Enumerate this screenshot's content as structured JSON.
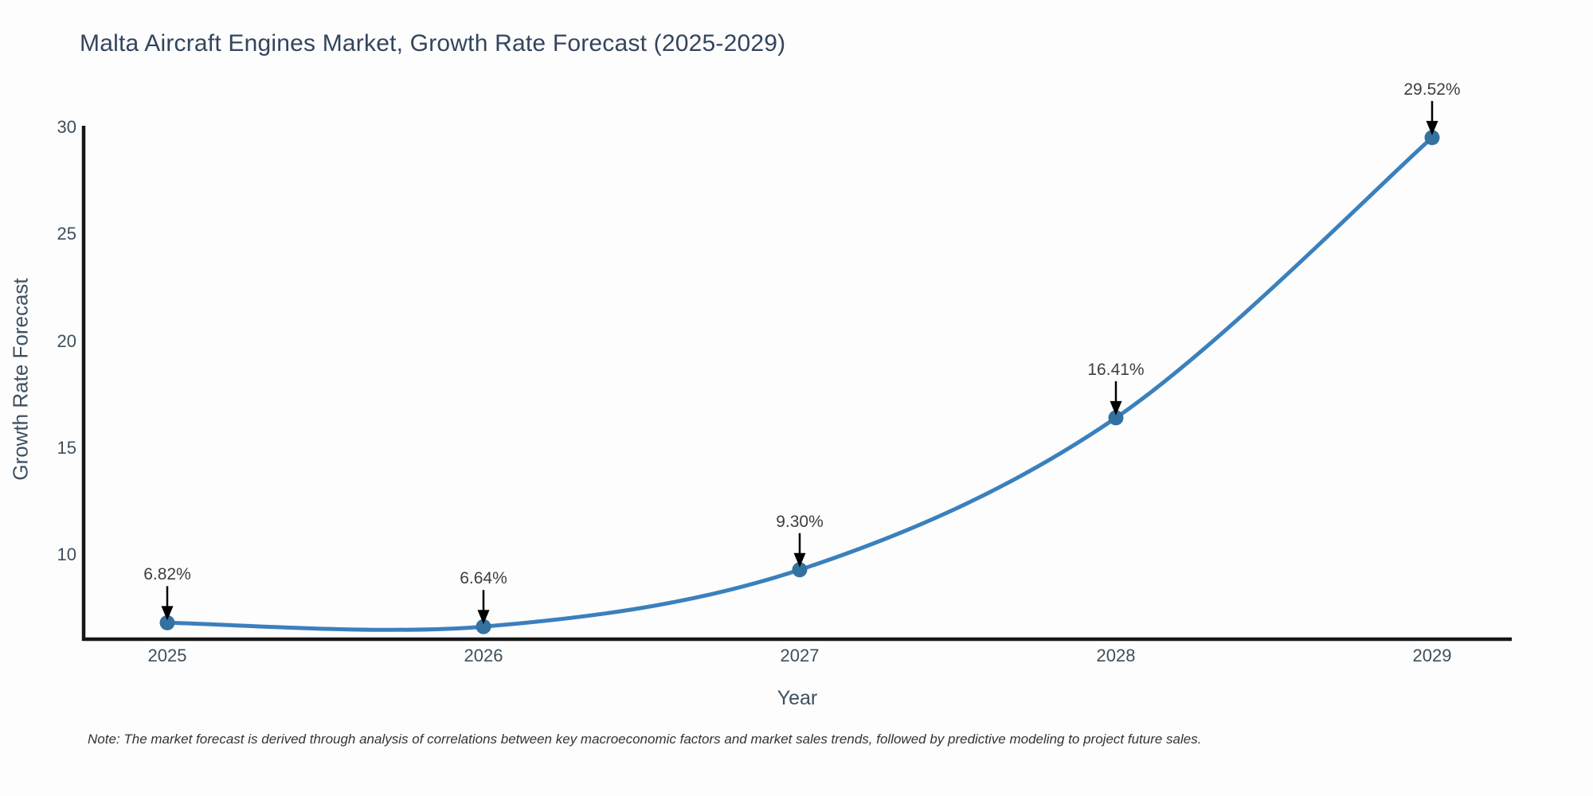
{
  "chart_data": {
    "type": "line",
    "title": "Malta Aircraft Engines Market, Growth Rate Forecast (2025-2029)",
    "xlabel": "Year",
    "ylabel": "Growth Rate Forecast",
    "categories": [
      "2025",
      "2026",
      "2027",
      "2028",
      "2029"
    ],
    "series": [
      {
        "name": "Growth Rate Forecast",
        "values": [
          6.82,
          6.64,
          9.3,
          16.41,
          29.52
        ]
      }
    ],
    "point_labels": [
      "6.82%",
      "6.64%",
      "9.30%",
      "16.41%",
      "29.52%"
    ],
    "yticks": [
      10,
      15,
      20,
      25,
      30
    ],
    "ylim": [
      6.15,
      30
    ],
    "grid": false,
    "legend": false,
    "smooth_spline": true,
    "line_color": "#3a80bd",
    "marker_color": "#33719f",
    "axis_color": "#161616",
    "arrow_color": "#000000",
    "note": "Note: The market forecast is derived through analysis of correlations between key macroeconomic factors and market sales trends, followed by predictive modeling to project future sales."
  }
}
